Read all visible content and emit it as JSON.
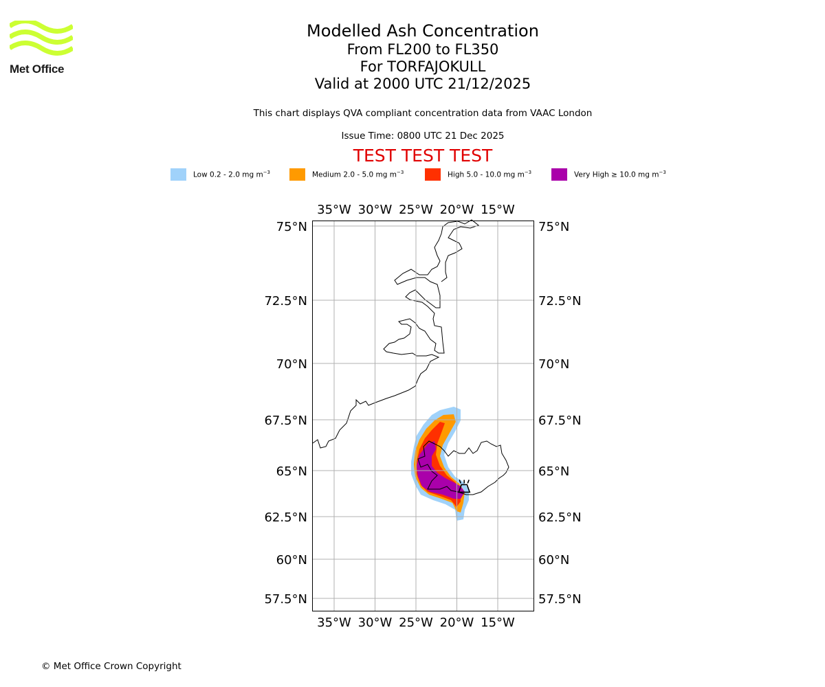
{
  "logo": {
    "text": "Met Office",
    "wave_color": "#ccff33"
  },
  "titles": {
    "line1": "Modelled Ash Concentration",
    "line2": "From FL200 to FL350",
    "line3": "For TORFAJOKULL",
    "line4": "Valid at 2000 UTC 21/12/2025"
  },
  "subtitle": "This chart displays QVA compliant concentration data from VAAC London",
  "issue_time": "Issue Time: 0800 UTC 21 Dec 2025",
  "test_banner": "TEST TEST TEST",
  "test_color": "#e00000",
  "legend": [
    {
      "label": "Low 0.2 - 2.0 mg m",
      "unit_exp": "−3",
      "color": "#a0d2fa"
    },
    {
      "label": "Medium 2.0 - 5.0 mg m",
      "unit_exp": "−3",
      "color": "#ff9a00"
    },
    {
      "label": "High 5.0 - 10.0 mg m",
      "unit_exp": "−3",
      "color": "#ff3000"
    },
    {
      "label": "Very High  ≥  10.0 mg m",
      "unit_exp": "−3",
      "color": "#aa00aa"
    }
  ],
  "map": {
    "lon_labels": [
      "35°W",
      "30°W",
      "25°W",
      "20°W",
      "15°W"
    ],
    "lon_values": [
      -35,
      -30,
      -25,
      -20,
      -15
    ],
    "lat_labels": [
      "75°N",
      "72.5°N",
      "70°N",
      "67.5°N",
      "65°N",
      "62.5°N",
      "60°N",
      "57.5°N"
    ],
    "lat_values": [
      75,
      72.5,
      70,
      67.5,
      65,
      62.5,
      60,
      57.5
    ],
    "lon_range": [
      -37.7,
      -10.7
    ],
    "lat_range": [
      56.9,
      75.2
    ],
    "volcano": {
      "name": "TORFAJOKULL",
      "lat": 63.9,
      "lon": -19.1
    }
  },
  "copyright": "© Met Office Crown Copyright"
}
